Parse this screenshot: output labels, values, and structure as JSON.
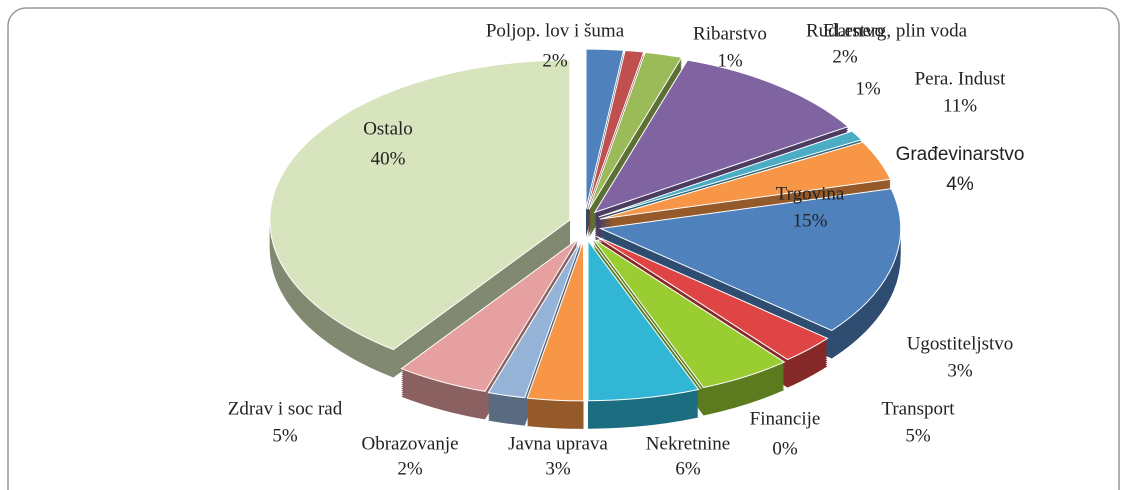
{
  "chart_data": {
    "type": "pie",
    "categories": [
      "Poljop. lov i šuma",
      "Ribarstvo",
      "Rudarstvo",
      "Pera. Indust",
      "El.energ, plin voda",
      "Građevinarstvo",
      "Trgovina",
      "Ugostiteljstvo",
      "Transport",
      "Financije",
      "Nekretnine",
      "Javna uprava",
      "Obrazovanje",
      "Zdrav i soc rad",
      "Ostalo"
    ],
    "values": [
      2,
      1,
      2,
      11,
      1,
      4,
      15,
      3,
      5,
      0,
      6,
      3,
      2,
      5,
      40
    ],
    "value_labels": [
      "2%",
      "1%",
      "2%",
      "11%",
      "1%",
      "4%",
      "15%",
      "3%",
      "5%",
      "0%",
      "6%",
      "3%",
      "2%",
      "5%",
      "40%"
    ],
    "colors": [
      "#4f81bd",
      "#c0504d",
      "#9bbb59",
      "#8064a2",
      "#4bacc6",
      "#f79646",
      "#4f81bd",
      "#e04545",
      "#9acd32",
      "#8064a2",
      "#31b6d6",
      "#f79646",
      "#95b3d7",
      "#e6a0a0",
      "#d7e4bd"
    ]
  }
}
